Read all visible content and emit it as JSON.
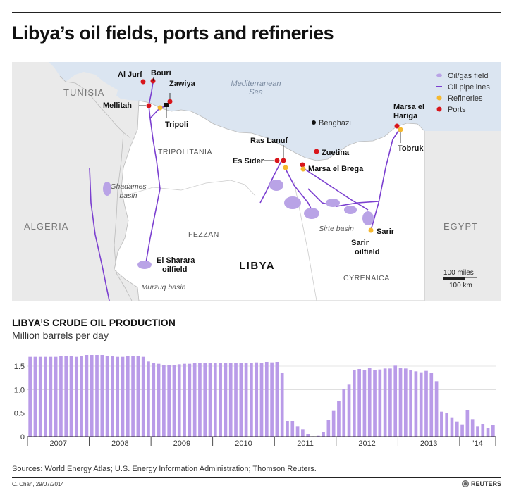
{
  "title": "Libya’s oil fields, ports and refineries",
  "map": {
    "sea_label": [
      "Mediterranean",
      "Sea"
    ],
    "countries": [
      "TUNISIA",
      "ALGERIA",
      "EGYPT",
      "LIBYA"
    ],
    "regions": [
      "TRIPOLITANIA",
      "FEZZAN",
      "CYRENAICA"
    ],
    "basins": [
      [
        "Ghadames",
        "basin"
      ],
      [
        "Sirte basin"
      ],
      [
        "Murzuq basin"
      ]
    ],
    "cities": [
      "Tripoli",
      "Benghazi"
    ],
    "ports": [
      "Al Jurf",
      "Bouri",
      "Zawiya",
      "Mellitah",
      "Ras Lanuf",
      "Es Sider",
      "Zuetina",
      "Marsa el Brega",
      [
        "Marsa el",
        "Hariga"
      ]
    ],
    "refineries": [
      "Tobruk"
    ],
    "oilfields": [
      [
        "El Sharara",
        "oilfield"
      ],
      [
        "Sarir",
        "oilfield"
      ]
    ],
    "other_labels": [
      "Sarir"
    ],
    "legend": [
      {
        "label": "Oil/gas field",
        "color": "#b9a3e6"
      },
      {
        "label": "Oil pipelines",
        "color": "#7b3fd0"
      },
      {
        "label": "Refineries",
        "color": "#f5b82e"
      },
      {
        "label": "Ports",
        "color": "#d8151b"
      }
    ],
    "scale": [
      "100 miles",
      "100 km"
    ],
    "colors": {
      "sea": "#dbe5f1",
      "land": "#eaeaea",
      "libya": "#ffffff"
    }
  },
  "chart_title": "LIBYA’S CRUDE OIL PRODUCTION",
  "chart_subtitle": "Million barrels per day",
  "chart_data": {
    "type": "bar",
    "title": "LIBYA’S CRUDE OIL PRODUCTION",
    "ylabel": "Million barrels per day",
    "ylim": [
      0,
      1.8
    ],
    "yticks": [
      0,
      0.5,
      1.0,
      1.5
    ],
    "ytick_labels": [
      "0",
      "0.5",
      "1.0",
      "1.5"
    ],
    "year_labels": [
      "2007",
      "2008",
      "2009",
      "2010",
      "2011",
      "2012",
      "2013",
      "’14"
    ],
    "bar_color": "#b99be8",
    "grid": true,
    "frequency": "monthly",
    "start": "2007-01",
    "values": [
      1.7,
      1.7,
      1.7,
      1.7,
      1.7,
      1.7,
      1.71,
      1.71,
      1.71,
      1.7,
      1.72,
      1.74,
      1.74,
      1.74,
      1.74,
      1.72,
      1.71,
      1.7,
      1.7,
      1.72,
      1.71,
      1.71,
      1.7,
      1.6,
      1.57,
      1.55,
      1.53,
      1.52,
      1.53,
      1.54,
      1.55,
      1.55,
      1.56,
      1.56,
      1.56,
      1.57,
      1.57,
      1.57,
      1.57,
      1.57,
      1.57,
      1.57,
      1.57,
      1.57,
      1.58,
      1.57,
      1.59,
      1.58,
      1.59,
      1.35,
      0.33,
      0.33,
      0.22,
      0.16,
      0.06,
      0.01,
      0.02,
      0.09,
      0.36,
      0.56,
      0.76,
      1.02,
      1.12,
      1.41,
      1.44,
      1.41,
      1.47,
      1.41,
      1.43,
      1.45,
      1.45,
      1.51,
      1.47,
      1.45,
      1.42,
      1.39,
      1.37,
      1.4,
      1.36,
      1.18,
      0.53,
      0.51,
      0.41,
      0.32,
      0.26,
      0.57,
      0.37,
      0.22,
      0.27,
      0.18,
      0.24
    ]
  },
  "sources": "Sources: World Energy Atlas; U.S. Energy Information Administration; Thomson Reuters.",
  "credit": "C. Chan, 29/07/2014",
  "brand": "REUTERS"
}
